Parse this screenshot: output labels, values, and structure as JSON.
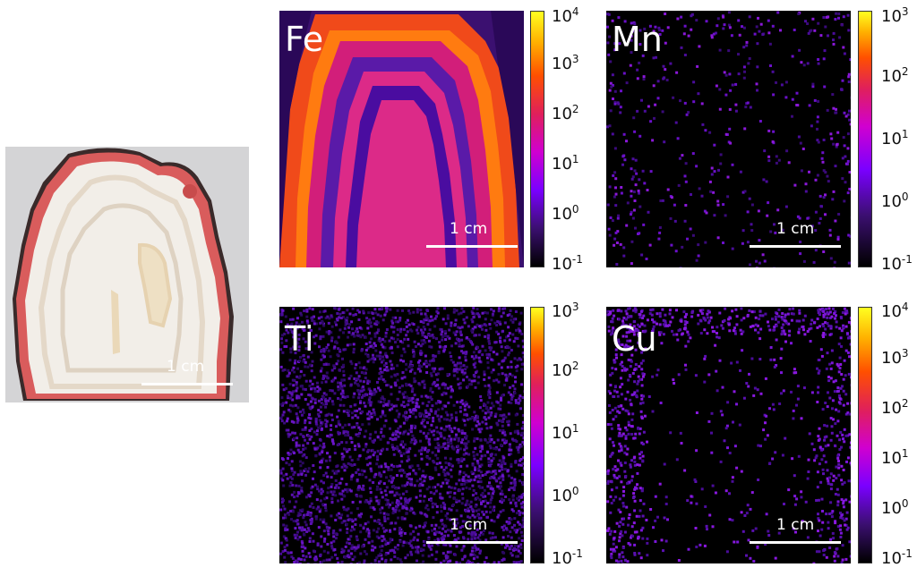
{
  "photo": {
    "scale_label": "1 cm",
    "colors": {
      "background": "#d4d4d6",
      "agate": "#f0ece4",
      "band_red": "#d95c5c"
    }
  },
  "panels": [
    {
      "element": "Fe",
      "scale_label": "1 cm",
      "colorbar": {
        "min_exp": -1,
        "max_exp": 4,
        "ticks": [
          "-1",
          "0",
          "1",
          "2",
          "3",
          "4"
        ]
      }
    },
    {
      "element": "Mn",
      "scale_label": "1 cm",
      "colorbar": {
        "min_exp": -1,
        "max_exp": 3,
        "ticks": [
          "-1",
          "0",
          "1",
          "2",
          "3"
        ]
      }
    },
    {
      "element": "Ti",
      "scale_label": "1 cm",
      "colorbar": {
        "min_exp": -1,
        "max_exp": 3,
        "ticks": [
          "-1",
          "0",
          "1",
          "2",
          "3"
        ]
      }
    },
    {
      "element": "Cu",
      "scale_label": "1 cm",
      "colorbar": {
        "min_exp": -1,
        "max_exp": 4,
        "ticks": [
          "-1",
          "0",
          "1",
          "2",
          "3",
          "4"
        ]
      }
    }
  ],
  "colormap": [
    "#000000",
    "#3b0f70",
    "#7a00ff",
    "#d000d0",
    "#e0205a",
    "#ff5000",
    "#ffb000",
    "#ffff20"
  ],
  "tick_base": "10"
}
